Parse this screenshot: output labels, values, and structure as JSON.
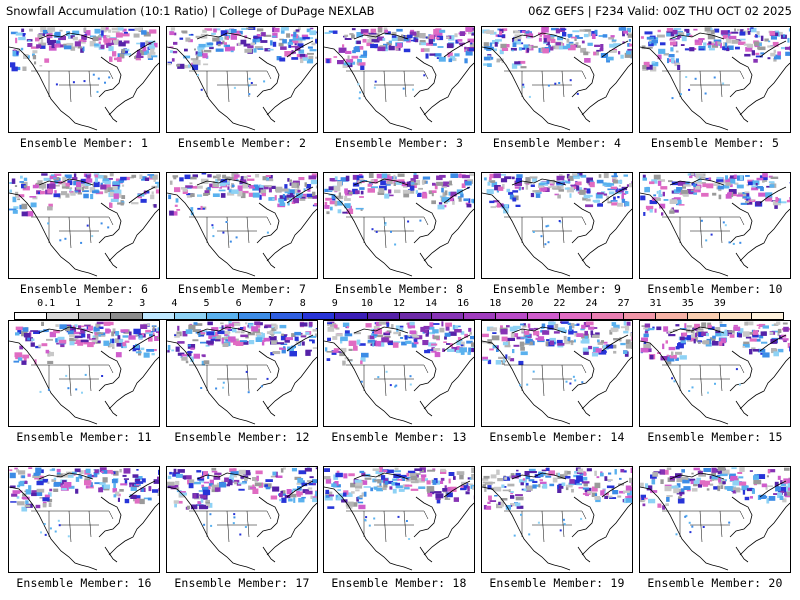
{
  "header": {
    "left": "Snowfall Accumulation (10:1 Ratio) | College of DuPage NEXLAB",
    "right": "06Z GEFS | F234 Valid: 00Z THU OCT 02 2025"
  },
  "panels": [
    {
      "label": "Ensemble Member: 1"
    },
    {
      "label": "Ensemble Member: 2"
    },
    {
      "label": "Ensemble Member: 3"
    },
    {
      "label": "Ensemble Member: 4"
    },
    {
      "label": "Ensemble Member: 5"
    },
    {
      "label": "Ensemble Member: 6"
    },
    {
      "label": "Ensemble Member: 7"
    },
    {
      "label": "Ensemble Member: 8"
    },
    {
      "label": "Ensemble Member: 9"
    },
    {
      "label": "Ensemble Member: 10"
    },
    {
      "label": "Ensemble Member: 11"
    },
    {
      "label": "Ensemble Member: 12"
    },
    {
      "label": "Ensemble Member: 13"
    },
    {
      "label": "Ensemble Member: 14"
    },
    {
      "label": "Ensemble Member: 15"
    },
    {
      "label": "Ensemble Member: 16"
    },
    {
      "label": "Ensemble Member: 17"
    },
    {
      "label": "Ensemble Member: 18"
    },
    {
      "label": "Ensemble Member: 19"
    },
    {
      "label": "Ensemble Member: 20"
    }
  ],
  "colorbar": {
    "labels": [
      "0.1",
      "1",
      "2",
      "3",
      "4",
      "5",
      "6",
      "7",
      "8",
      "9",
      "10",
      "12",
      "14",
      "16",
      "18",
      "20",
      "22",
      "24",
      "27",
      "31",
      "35",
      "39"
    ],
    "colors": [
      "#ffffff",
      "#d9d9d9",
      "#b3b3b3",
      "#8c8c8c",
      "#bfe8ff",
      "#8ed2f5",
      "#5ab1ee",
      "#3c8ce6",
      "#2f5fe0",
      "#2734d8",
      "#3b1fb8",
      "#5522a8",
      "#6d2aa8",
      "#8733b5",
      "#a03cbe",
      "#b94bc8",
      "#cf5ccc",
      "#e06cc2",
      "#ea7fb3",
      "#f196a8",
      "#f6b2a6",
      "#f9cdb0",
      "#fde3c6",
      "#fff2dd"
    ]
  }
}
